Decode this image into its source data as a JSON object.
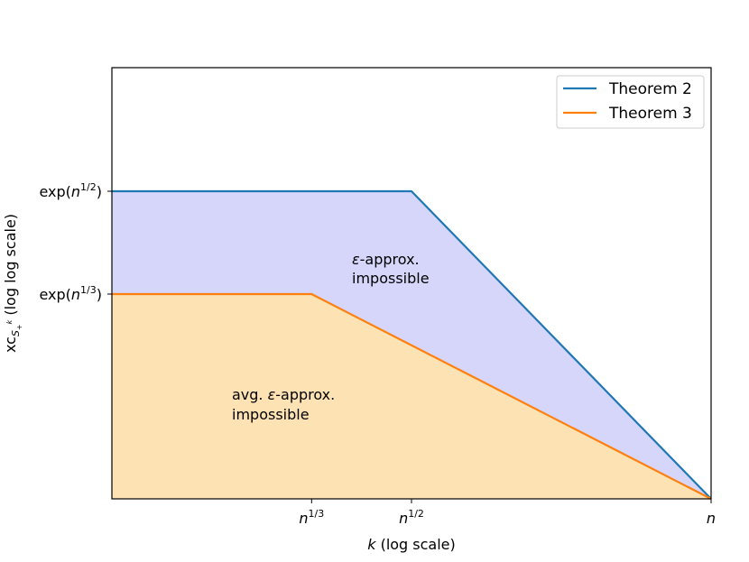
{
  "chart_data": {
    "type": "area",
    "title": "",
    "xlabel": "k (log scale)",
    "ylabel": "xc_{S_+^k} (log log scale)",
    "xscale": "log",
    "yscale": "log-log",
    "xlim": [
      0,
      1
    ],
    "ylim": [
      0,
      1
    ],
    "grid": false,
    "legend_position": "top-right",
    "xticks": [
      {
        "value": 0.3333,
        "label": "n^{1/3}"
      },
      {
        "value": 0.5,
        "label": "n^{1/2}"
      },
      {
        "value": 1,
        "label": "n"
      }
    ],
    "yticks": [
      {
        "value": 0.5,
        "label": "exp(n^{1/2})"
      },
      {
        "value": 0.3333,
        "label": "exp(n^{1/3})"
      }
    ],
    "series": [
      {
        "name": "Theorem 2",
        "color": "#1f77b4",
        "x": [
          0,
          0.5,
          1
        ],
        "y": [
          0.5,
          0.5,
          0
        ]
      },
      {
        "name": "Theorem 3",
        "color": "#ff7f0e",
        "x": [
          0,
          0.3333,
          1
        ],
        "y": [
          0.3333,
          0.3333,
          0
        ]
      }
    ],
    "fills": [
      {
        "between": [
          "Theorem 3",
          "Theorem 2"
        ],
        "color": "#d6d6fb"
      },
      {
        "between": [
          "axis",
          "Theorem 3"
        ],
        "color": "#fde2b3"
      }
    ],
    "annotations": [
      {
        "text_parts": [
          "ε",
          "-approx."
        ],
        "text_line2": "impossible",
        "x": 0.4,
        "y": 0.39
      },
      {
        "text_parts": [
          "avg. ",
          "ε",
          "-approx."
        ],
        "text_line2": "impossible",
        "x": 0.2,
        "y": 0.16
      }
    ]
  }
}
